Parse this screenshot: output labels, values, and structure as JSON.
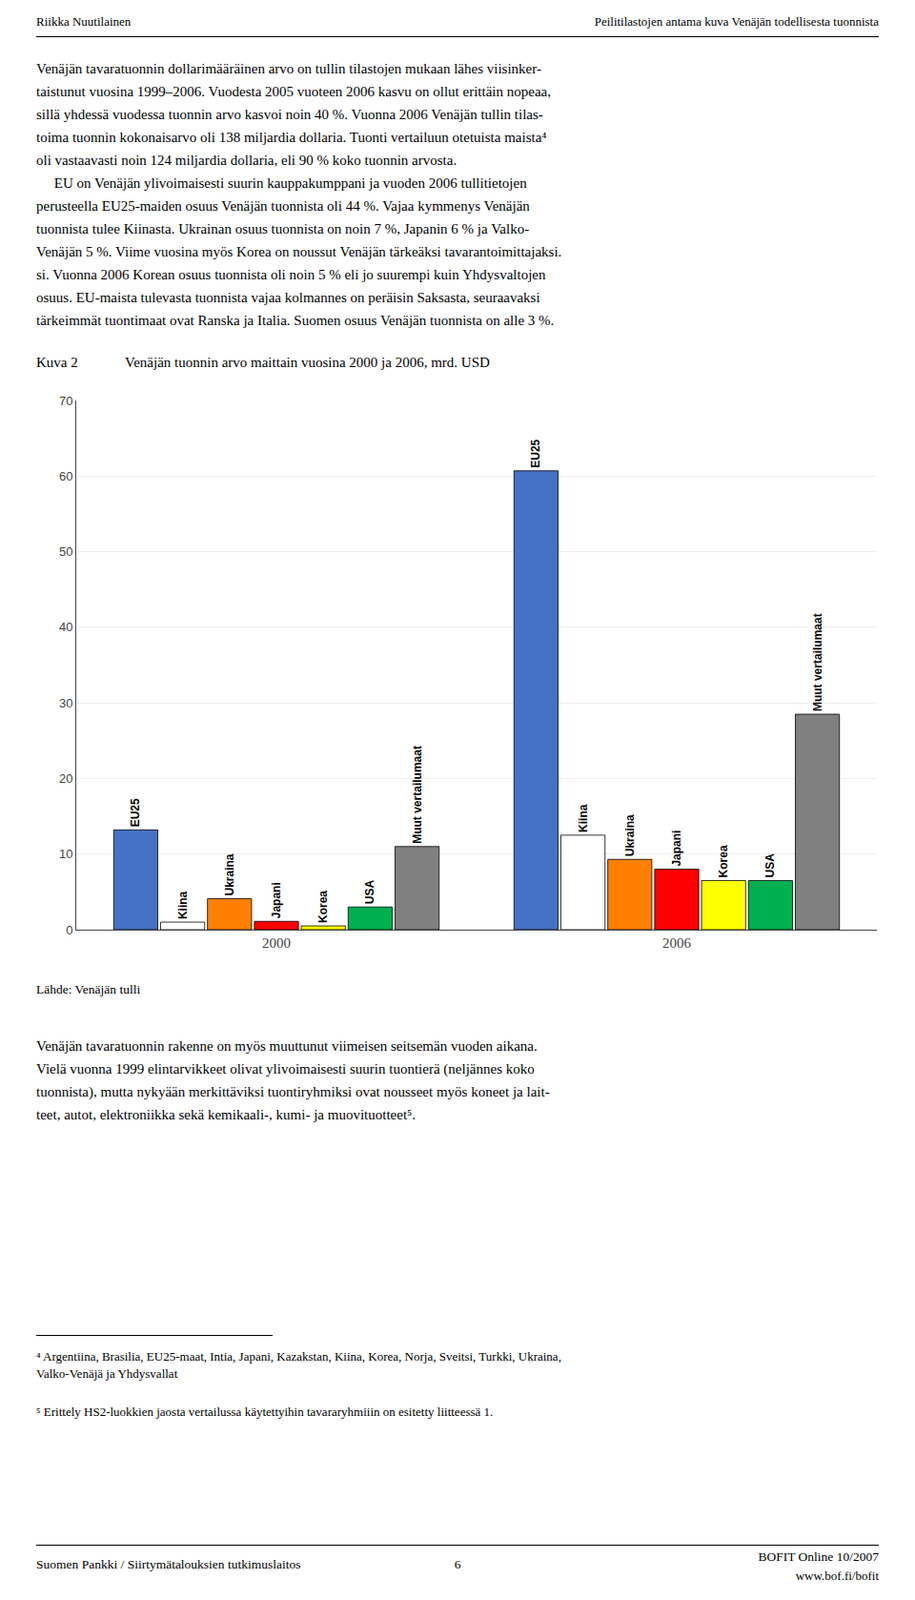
{
  "chart_data": {
    "type": "bar",
    "title": "Venäjän tuonnin arvo maittain vuosina 2000 ja 2006, mrd. USD",
    "categories": [
      "2000",
      "2006"
    ],
    "series": [
      {
        "name": "EU25",
        "color": "#4472C4",
        "values": [
          13.2,
          60.7
        ]
      },
      {
        "name": "Kiina",
        "color": "#FFFFFF",
        "values": [
          1.0,
          12.5
        ]
      },
      {
        "name": "Ukraina",
        "color": "#FF8000",
        "values": [
          4.1,
          9.3
        ]
      },
      {
        "name": "Japani",
        "color": "#FF0000",
        "values": [
          1.1,
          8.0
        ]
      },
      {
        "name": "Korea",
        "color": "#FFFF00",
        "values": [
          0.5,
          6.5
        ]
      },
      {
        "name": "USA",
        "color": "#00B050",
        "values": [
          3.0,
          6.5
        ]
      },
      {
        "name": "Muut vertailumaat",
        "color": "#808080",
        "values": [
          11.0,
          28.5
        ]
      }
    ],
    "ylim": [
      0,
      70
    ],
    "yticks": [
      0,
      10,
      20,
      30,
      40,
      50,
      60,
      70
    ],
    "grid": true,
    "annotations": [
      "Riikka Nuutilainen",
      "Peilitilastojen antama kuva Venäjän todellisesta tuonnista",
      "Venäjän tavaratuonnin dollarimääräinen arvo on tullin tilastojen mukaan lähes viisinker-\ntaistunut vuosina 1999–2006. Vuodesta 2005 vuoteen 2006 kasvu on ollut erittäin nopeaa,\nsillä yhdessä vuodessa tuonnin arvo kasvoi noin 40 %. Vuonna 2006 Venäjän tullin tilas-\ntoima tuonnin kokonaisarvo oli 138 miljardia dollaria. Tuonti vertailuun otetuista maista⁴\noli vastaavasti noin 124 miljardia dollaria, eli 90 % koko tuonnin arvosta.\n     EU on Venäjän ylivoimaisesti suurin kauppakumppani ja vuoden 2006 tullitietojen\nperusteella EU25-maiden osuus Venäjän tuonnista oli 44 %. Vajaa kymmenys Venäjän\ntuonnista tulee Kiinasta. Ukrainan osuus tuonnista on noin 7 %, Japanin 6 % ja Valko-\nVenäjän 5 %. Viime vuosina myös Korea on noussut Venäjän tärkeäksi tavarantoimittajaksi.\nsi. Vuonna 2006 Korean osuus tuonnista oli noin 5 % eli jo suurempi kuin Yhdysvaltojen\nosuus. EU-maista tulevasta tuonnista vajaa kolmannes on peräisin Saksasta, seuraavaksi\ntärkeimmät tuontimaat ovat Ranska ja Italia. Suomen osuus Venäjän tuonnista on alle 3 %.",
      "Kuva 2",
      "Lähde: Venäjän tulli",
      "Venäjän tavaratuonnin rakenne on myös muuttunut viimeisen seitsemän vuoden aikana.\nVielä vuonna 1999 elintarvikkeet olivat ylivoimaisesti suurin tuontierä (neljännes koko\ntuonnista), mutta nykyään merkittäviksi tuontiryhmiksi ovat nousseet myös koneet ja lait-\nteet, autot, elektroniikka sekä kemikaali-, kumi- ja muovituotteet⁵.",
      "⁴ Argentiina, Brasilia, EU25-maat, Intia, Japani, Kazakstan, Kiina, Korea, Norja, Sveitsi, Turkki, Ukraina,\nValko-Venäjä ja Yhdysvallat",
      "⁵ Erittely HS2-luokkien jaosta vertailussa käytettyihin tavararyhmiiin on esitetty liitteessä 1.",
      "Suomen Pankki / Siirtymätalouksien tutkimuslaitos",
      "6",
      "BOFIT Online 10/2007",
      "www.bof.fi/bofit"
    ]
  }
}
